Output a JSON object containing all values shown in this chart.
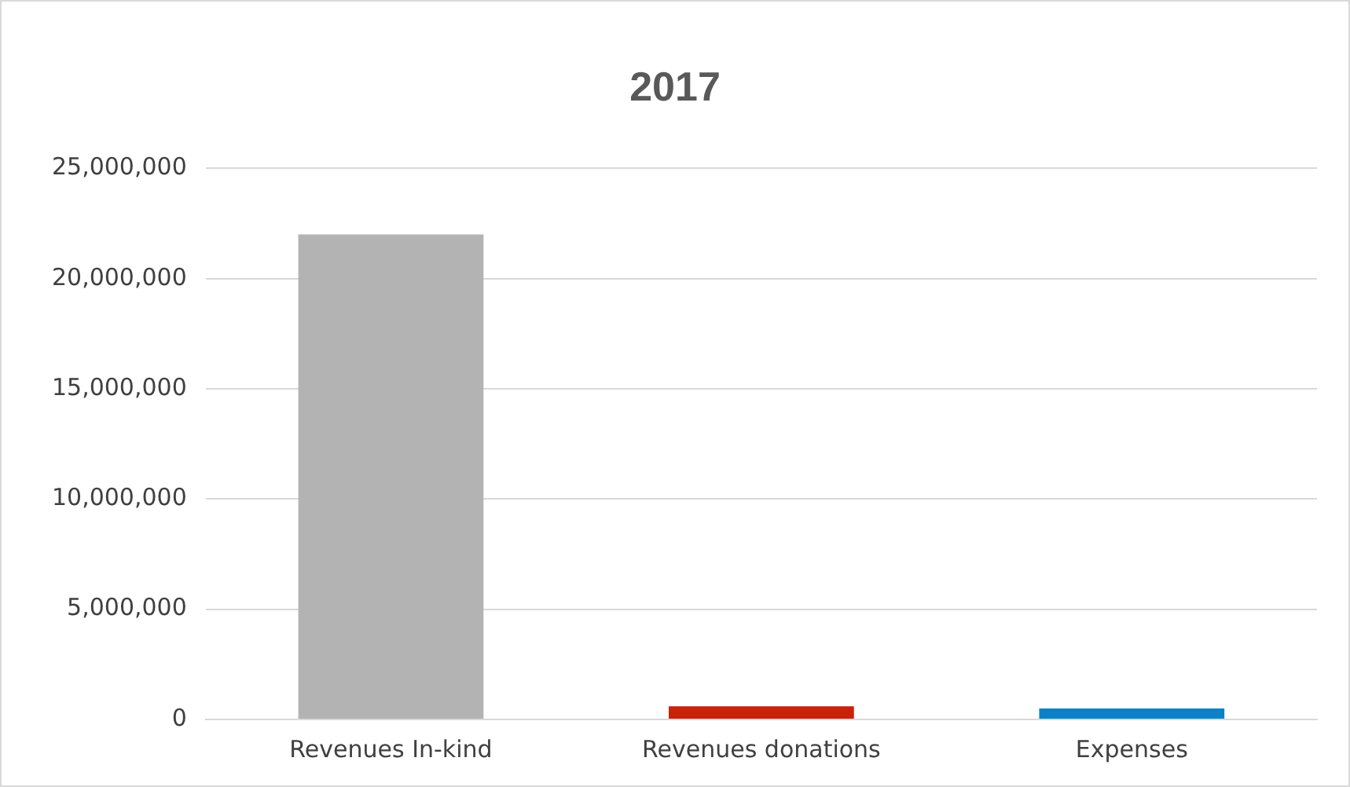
{
  "chart_data": {
    "type": "bar",
    "title": "2017",
    "categories": [
      "Revenues In-kind",
      "Revenues donations",
      "Expenses"
    ],
    "values": [
      22000000,
      600000,
      500000
    ],
    "colors": [
      "#b3b3b3",
      "#c9210a",
      "#0b82c8"
    ],
    "ylim": [
      0,
      25000000
    ],
    "yticks": [
      0,
      {
        "value": 5000000,
        "label": "5,000,000"
      },
      {
        "value": 10000000,
        "label": "10,000,000"
      },
      {
        "value": 15000000,
        "label": "15,000,000"
      },
      {
        "value": 20000000,
        "label": "20,000,000"
      },
      {
        "value": 25000000,
        "label": "25,000,000"
      }
    ],
    "grid": "y",
    "legend": false
  }
}
